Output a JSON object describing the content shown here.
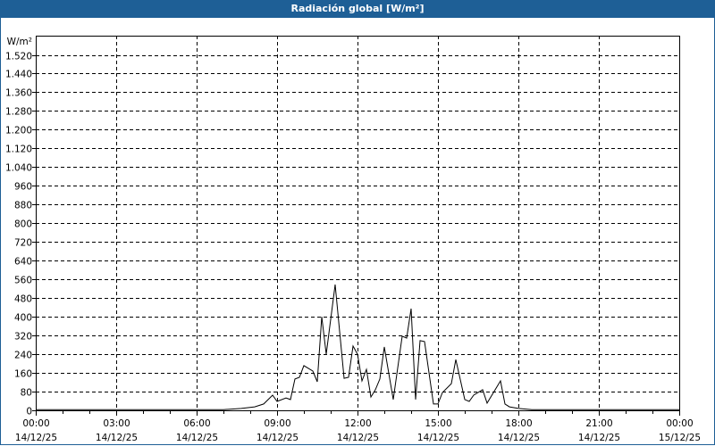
{
  "window": {
    "title": "Radiación global [W/m²]"
  },
  "chart_data": {
    "type": "line",
    "title": "Radiación global [W/m²]",
    "ylabel": "W/m²",
    "ylim": [
      0,
      1520
    ],
    "yticks": [
      0,
      80,
      160,
      240,
      320,
      400,
      480,
      560,
      640,
      720,
      800,
      880,
      960,
      1040,
      1120,
      1200,
      1280,
      1360,
      1440,
      1520
    ],
    "ytick_labels": [
      "0",
      "80",
      "160",
      "240",
      "320",
      "400",
      "480",
      "560",
      "640",
      "720",
      "800",
      "880",
      "960",
      "1.040",
      "1.120",
      "1.200",
      "1.280",
      "1.360",
      "1.440",
      "1.520"
    ],
    "xlim": [
      "2025-12-14 00:00",
      "2025-12-15 00:00"
    ],
    "xticks": [
      {
        "time": "00:00",
        "date": "14/12/25",
        "hour": 0
      },
      {
        "time": "03:00",
        "date": "14/12/25",
        "hour": 3
      },
      {
        "time": "06:00",
        "date": "14/12/25",
        "hour": 6
      },
      {
        "time": "09:00",
        "date": "14/12/25",
        "hour": 9
      },
      {
        "time": "12:00",
        "date": "14/12/25",
        "hour": 12
      },
      {
        "time": "15:00",
        "date": "14/12/25",
        "hour": 15
      },
      {
        "time": "18:00",
        "date": "14/12/25",
        "hour": 18
      },
      {
        "time": "21:00",
        "date": "14/12/25",
        "hour": 21
      },
      {
        "time": "00:00",
        "date": "15/12/25",
        "hour": 24
      }
    ],
    "grid": true,
    "colors": {
      "line": "#000000",
      "titlebar": "#1e5f96"
    },
    "series": [
      {
        "x": [
          "00:00",
          "07:00",
          "07:40",
          "08:10",
          "08:30",
          "08:50",
          "09:00",
          "09:20",
          "09:30",
          "09:40",
          "09:50",
          "10:00",
          "10:20",
          "10:30",
          "10:40",
          "10:50",
          "11:10",
          "11:30",
          "11:40",
          "11:50",
          "12:00",
          "12:10",
          "12:20",
          "12:30",
          "12:40",
          "12:50",
          "13:00",
          "13:20",
          "13:40",
          "13:50",
          "14:00",
          "14:10",
          "14:20",
          "14:30",
          "14:50",
          "15:00",
          "15:10",
          "15:30",
          "15:40",
          "16:00",
          "16:10",
          "16:20",
          "16:40",
          "16:50",
          "17:20",
          "17:30",
          "17:40",
          "18:00",
          "18:30",
          "24:00"
        ],
        "values": [
          3,
          3,
          8,
          15,
          27,
          65,
          38,
          53,
          46,
          134,
          141,
          191,
          168,
          122,
          400,
          240,
          538,
          137,
          141,
          275,
          240,
          126,
          175,
          57,
          88,
          134,
          271,
          46,
          317,
          309,
          435,
          46,
          298,
          294,
          27,
          27,
          76,
          114,
          217,
          46,
          38,
          65,
          88,
          31,
          126,
          27,
          15,
          8,
          3,
          3
        ]
      }
    ]
  }
}
